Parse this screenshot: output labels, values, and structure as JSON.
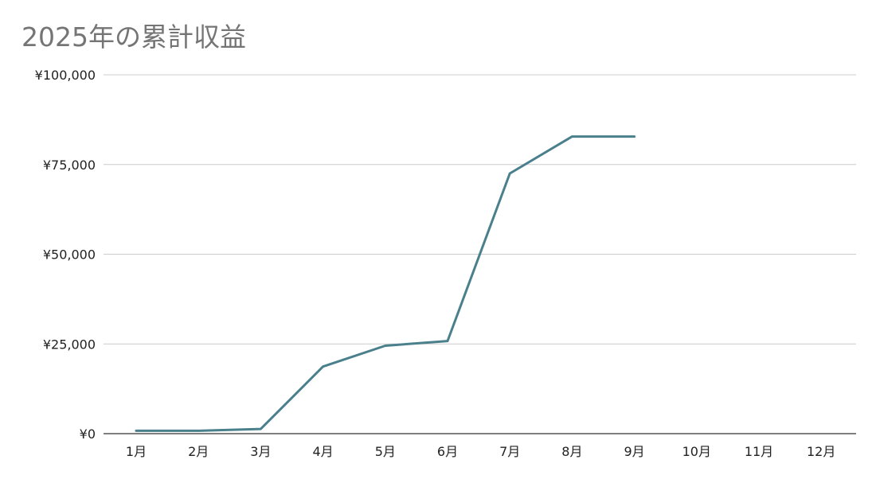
{
  "chart_data": {
    "type": "line",
    "title": "2025年の累計収益",
    "xlabel": "",
    "ylabel": "",
    "categories": [
      "1月",
      "2月",
      "3月",
      "4月",
      "5月",
      "6月",
      "7月",
      "8月",
      "9月",
      "10月",
      "11月",
      "12月"
    ],
    "series": [
      {
        "values": [
          800,
          800,
          1300,
          18700,
          24500,
          25800,
          72500,
          82800,
          82800,
          null,
          null,
          null
        ]
      }
    ],
    "ylim": [
      0,
      100000
    ],
    "yticks": [
      0,
      25000,
      50000,
      75000,
      100000
    ],
    "ytick_labels": [
      "¥0",
      "¥25,000",
      "¥50,000",
      "¥75,000",
      "¥100,000"
    ],
    "grid": true,
    "legend": "none",
    "colors": {
      "line": "#4a7f8c",
      "grid": "#cccccc",
      "axis": "#333333",
      "title": "#757575"
    }
  }
}
